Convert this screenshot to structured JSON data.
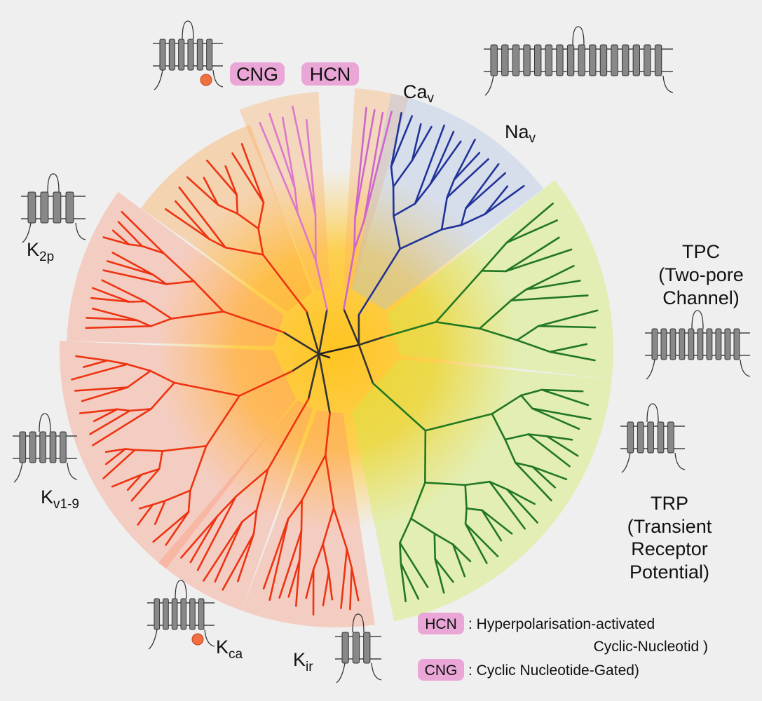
{
  "labels": {
    "cng": "CNG",
    "hcn": "HCN",
    "cav": {
      "main": "Ca",
      "sub": "v"
    },
    "nav": {
      "main": "Na",
      "sub": "v"
    },
    "k2p": {
      "main": "K",
      "sub": "2p"
    },
    "tpc": [
      "TPC",
      "(Two-pore",
      "Channel)"
    ],
    "kv": {
      "main": "K",
      "sub": "v1-9"
    },
    "trp": [
      "TRP",
      "(Transient",
      "Receptor",
      "Potential)"
    ],
    "kca": {
      "main": "K",
      "sub": "ca"
    },
    "kir": {
      "main": "K",
      "sub": "ir"
    }
  },
  "legend": [
    {
      "abbr": "HCN",
      "text": [
        ": Hyperpolarisation-activated",
        "Cyclic-Nucleotid )"
      ]
    },
    {
      "abbr": "CNG",
      "text": [
        ": Cyclic Nucleotide-Gated)"
      ]
    }
  ]
}
